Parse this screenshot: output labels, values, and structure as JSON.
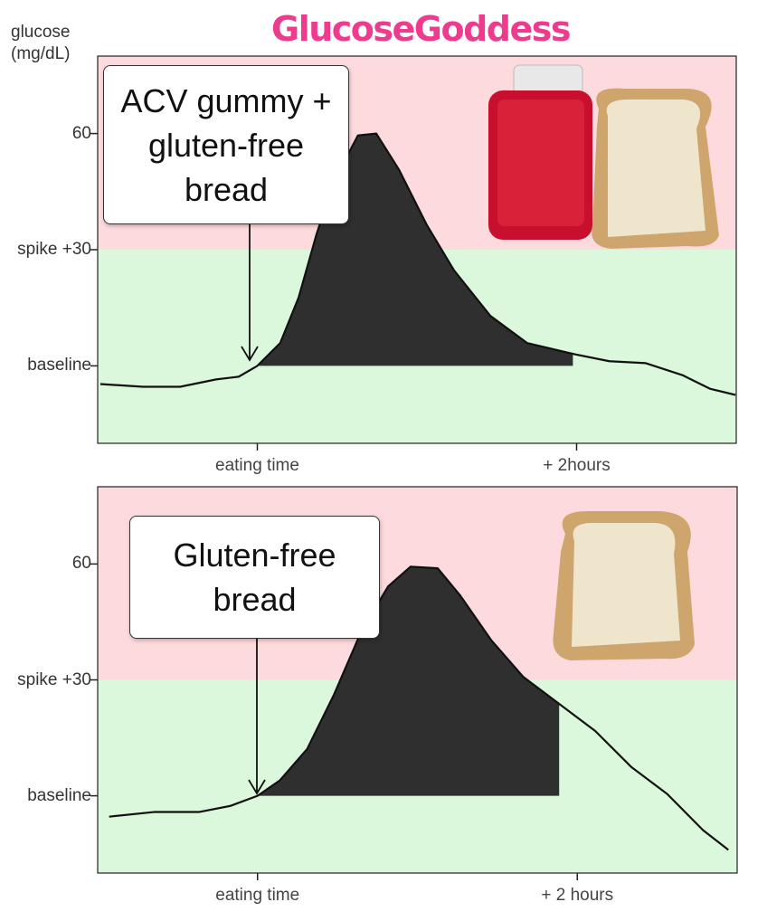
{
  "header": {
    "logo": "GlucoseGoddess"
  },
  "chart_data": [
    {
      "type": "line",
      "y_label": "glucose (mg/dL)",
      "annotation": "ACV gummy + gluten-free bread",
      "x": [
        -59,
        -43,
        -29,
        -15.5,
        -7,
        0,
        8.6,
        15.5,
        22.3,
        29.2,
        37.8,
        44.7,
        53.3,
        63.6,
        73.9,
        87.6,
        101.4,
        118.6,
        132.3,
        146,
        159.8,
        170.1,
        179.7
      ],
      "values": [
        -4.7,
        -5.4,
        -5.4,
        -3.5,
        -2.8,
        0,
        5.9,
        17.6,
        34.1,
        48.2,
        59.5,
        60,
        50.6,
        36.5,
        24.7,
        12.9,
        5.9,
        3.1,
        1.2,
        0.7,
        -2.4,
        -5.9,
        -7.5
      ],
      "color": "#111111",
      "shade_color": "#2f2f2f",
      "shaded_x": [
        0,
        118.6
      ],
      "spike_threshold": 30,
      "above_color": "#fddadd",
      "below_color": "#dcf8dc",
      "xlim": [
        -60,
        180
      ],
      "ylim": [
        -20,
        80
      ],
      "xticks": [
        {
          "value": 0,
          "label": "eating time"
        },
        {
          "value": 120,
          "label": "+ 2hours"
        }
      ],
      "yticks": [
        {
          "value": 0,
          "label": "baseline"
        },
        {
          "value": 30,
          "label": "spike +30"
        },
        60
      ]
    },
    {
      "type": "line",
      "annotation": "Gluten-free bread",
      "x": [
        -55.7,
        -38.9,
        -22,
        -10.1,
        0,
        8.4,
        18.6,
        28.7,
        38.9,
        49,
        57.4,
        67.6,
        76,
        87.8,
        99.7,
        113.2,
        126.7,
        140.2,
        153.7,
        167.2,
        176.7
      ],
      "values": [
        -5.4,
        -4.2,
        -4.2,
        -2.6,
        0,
        4,
        12.1,
        26.2,
        42.5,
        54.2,
        59.3,
        58.9,
        51.9,
        40.2,
        30.8,
        23.8,
        16.8,
        7.5,
        0.5,
        -8.9,
        -14
      ],
      "color": "#111111",
      "shade_color": "#2f2f2f",
      "shaded_x": [
        0,
        113.2
      ],
      "spike_threshold": 30,
      "above_color": "#fddadd",
      "below_color": "#dcf8dc",
      "xlim": [
        -60,
        180
      ],
      "ylim": [
        -20,
        80
      ],
      "xticks": [
        {
          "value": 0,
          "label": "eating time"
        },
        {
          "value": 120,
          "label": "+ 2 hours"
        }
      ],
      "yticks": [
        {
          "value": 0,
          "label": "baseline"
        },
        {
          "value": 30,
          "label": "spike +30"
        },
        60
      ]
    }
  ]
}
